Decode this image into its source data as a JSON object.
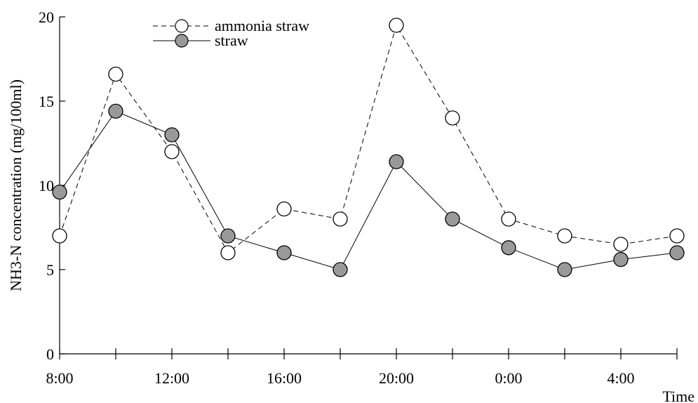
{
  "chart_data": {
    "type": "line",
    "xlabel": "Time",
    "ylabel": "NH3-N concentration (mg/100ml)",
    "ylim": [
      0,
      20
    ],
    "yticks": [
      0,
      5,
      10,
      15,
      20
    ],
    "x": [
      "8:00",
      "10:00",
      "12:00",
      "14:00",
      "16:00",
      "18:00",
      "20:00",
      "22:00",
      "0:00",
      "2:00",
      "4:00",
      "6:00"
    ],
    "xtick_labels": [
      "8:00",
      "12:00",
      "16:00",
      "20:00",
      "0:00",
      "4:00"
    ],
    "grid": false,
    "legend_position": "top-left",
    "series": [
      {
        "name": "ammonia straw",
        "line_style": "dashed",
        "marker_fill": "#ffffff",
        "values": [
          7.0,
          16.6,
          12.0,
          6.0,
          8.6,
          8.0,
          19.5,
          14.0,
          8.0,
          7.0,
          6.5,
          7.0
        ]
      },
      {
        "name": "straw",
        "line_style": "solid",
        "marker_fill": "#999999",
        "values": [
          9.6,
          14.4,
          13.0,
          7.0,
          6.0,
          5.0,
          11.4,
          8.0,
          6.3,
          5.0,
          5.6,
          6.0
        ]
      }
    ]
  }
}
